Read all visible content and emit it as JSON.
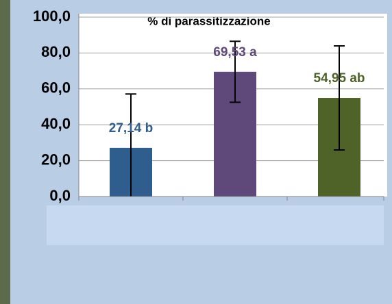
{
  "chart_data": {
    "type": "bar",
    "title": "% di parassitizzazione",
    "categories": [
      null,
      null,
      null
    ],
    "values": [
      27.14,
      69.53,
      54.95
    ],
    "value_labels": [
      "27,14 b",
      "69,53 a",
      "54,95 ab"
    ],
    "errors": [
      30,
      17,
      29
    ],
    "colors": [
      "#2e5d8e",
      "#5f497a",
      "#4f6228"
    ],
    "ylim": [
      0,
      100
    ],
    "yticks": [
      {
        "value": 0,
        "label": "0,0"
      },
      {
        "value": 20,
        "label": "20,0"
      },
      {
        "value": 40,
        "label": "40,0"
      },
      {
        "value": 60,
        "label": "60,0"
      },
      {
        "value": 80,
        "label": "80,0"
      },
      {
        "value": 100,
        "label": "100,0"
      }
    ],
    "grid": true
  }
}
